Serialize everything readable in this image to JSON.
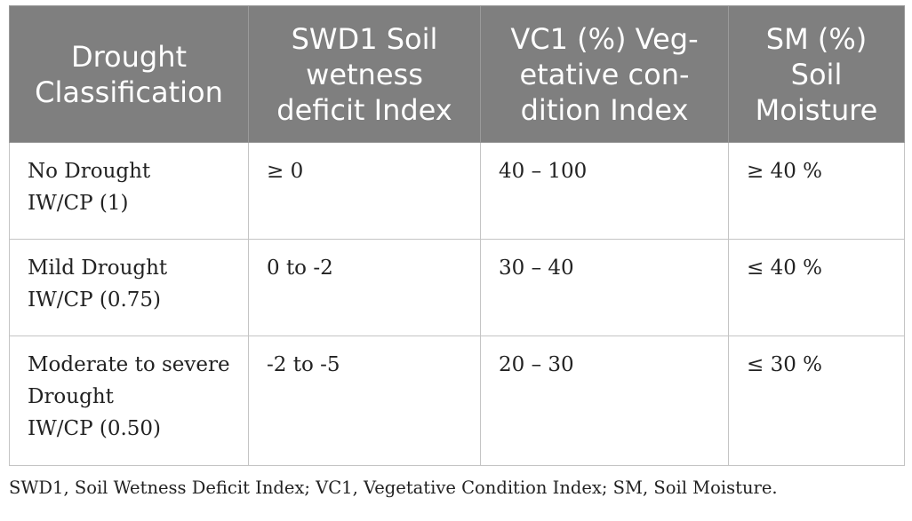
{
  "table": {
    "headers": [
      [
        "Drought",
        "Classification"
      ],
      [
        "SWD1 Soil",
        "wetness",
        "deficit Index"
      ],
      [
        "VC1 (%) Veg-",
        "etative con-",
        "dition Index"
      ],
      [
        "SM (%)",
        "Soil",
        "Moisture"
      ]
    ],
    "rows": [
      {
        "classification": [
          "No Drought",
          "IW/CP (1)"
        ],
        "swd1": "≥ 0",
        "vc1": "40 – 100",
        "sm": "≥ 40 %"
      },
      {
        "classification": [
          "Mild Drought",
          "IW/CP (0.75)"
        ],
        "swd1": "0 to -2",
        "vc1": "30 – 40",
        "sm": "≤ 40 %"
      },
      {
        "classification": [
          "Moderate to severe",
          "Drought",
          "IW/CP (0.50)"
        ],
        "swd1": "-2 to -5",
        "vc1": "20 – 30",
        "sm": "≤ 30 %"
      }
    ]
  },
  "footnote": "SWD1, Soil Wetness Deficit Index; VC1, Vegetative Condition Index; SM, Soil Moisture."
}
